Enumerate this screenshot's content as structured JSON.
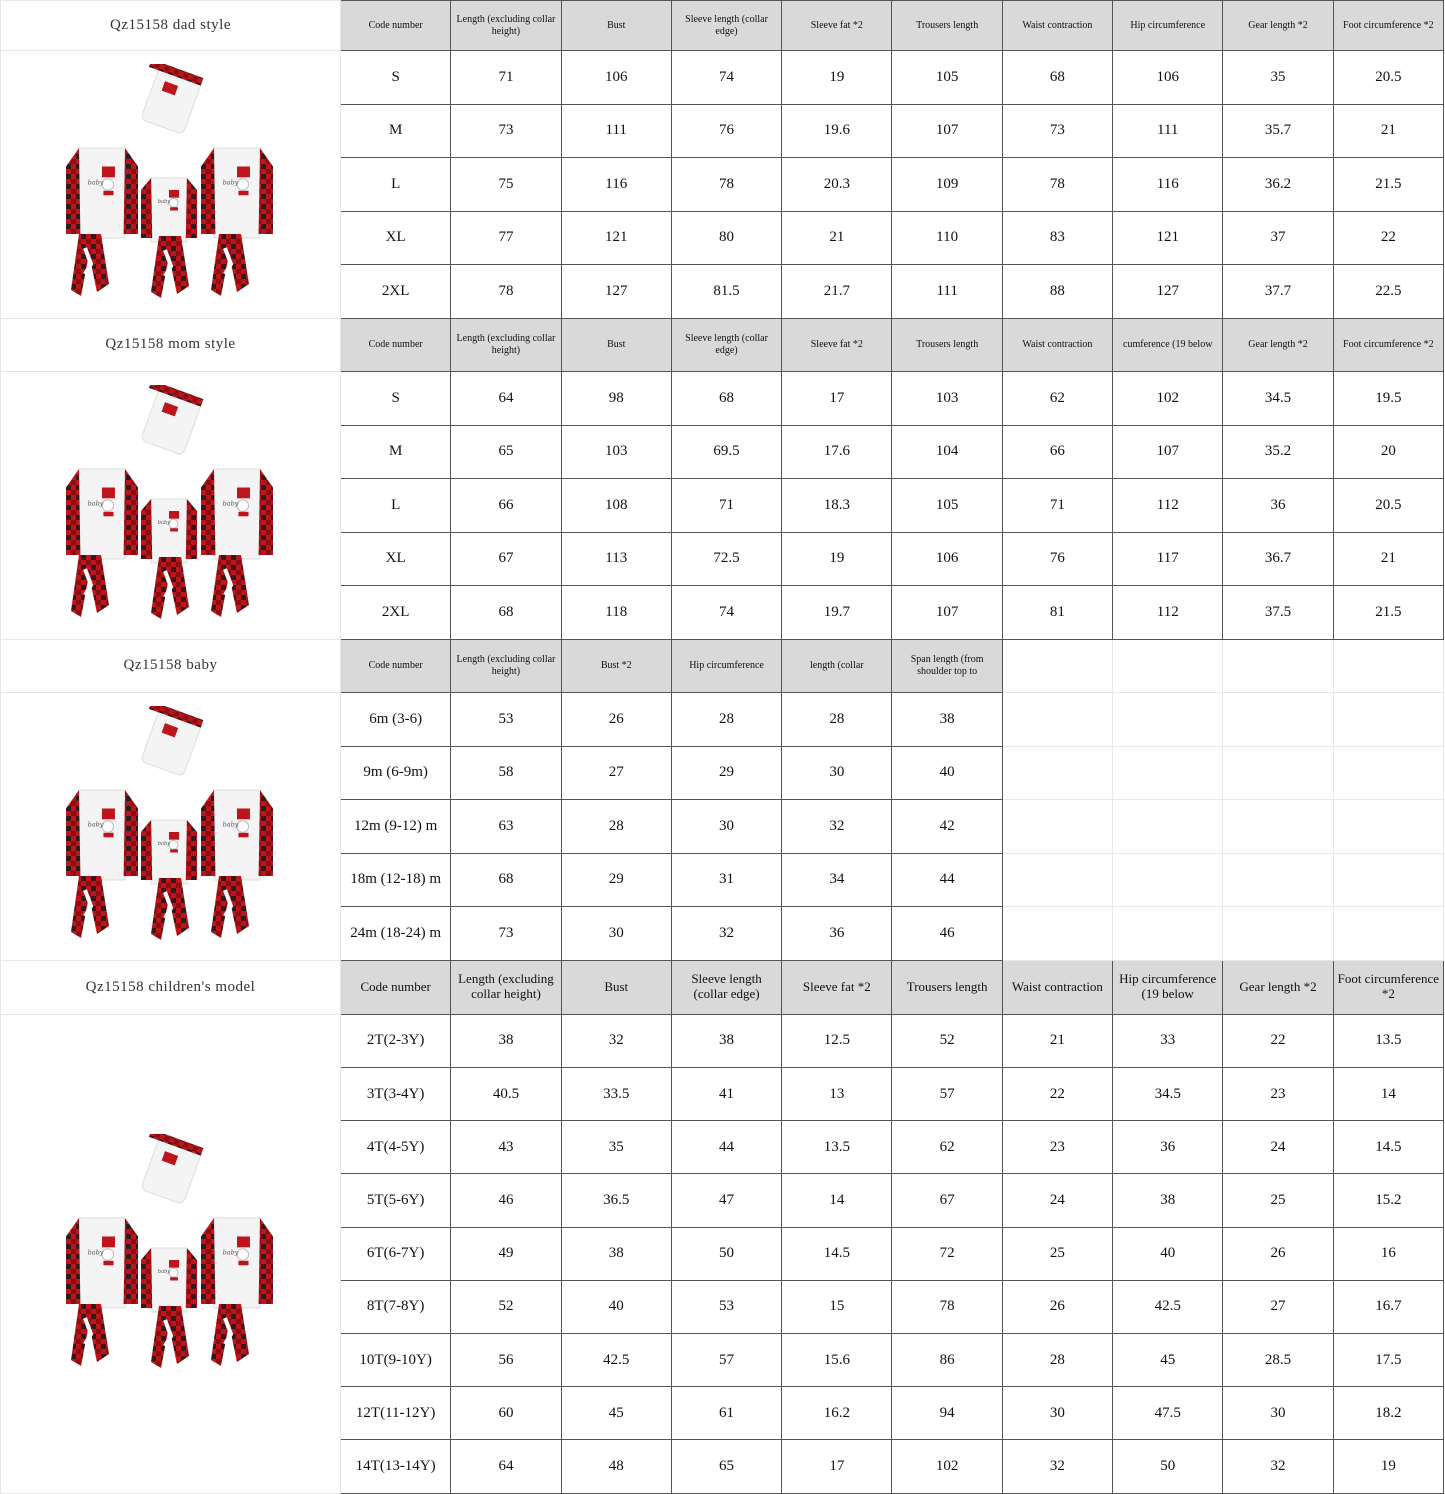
{
  "colors": {
    "header_bg": "#d9d9d9",
    "plaid_red": "#c0141c",
    "plaid_black": "#1a1a1a",
    "border": "#555555"
  },
  "sections": [
    {
      "title": "Qz15158 dad style",
      "image": "family-pajama-product-image",
      "header_class": "",
      "headers": [
        "Code number",
        "Length (excluding collar height)",
        "Bust",
        "Sleeve length (collar edge)",
        "Sleeve fat *2",
        "Trousers length",
        "Waist contraction",
        "Hip circumference",
        "Gear length *2",
        "Foot circumference *2"
      ],
      "rows": [
        [
          "S",
          "71",
          "106",
          "74",
          "19",
          "105",
          "68",
          "106",
          "35",
          "20.5"
        ],
        [
          "M",
          "73",
          "111",
          "76",
          "19.6",
          "107",
          "73",
          "111",
          "35.7",
          "21"
        ],
        [
          "L",
          "75",
          "116",
          "78",
          "20.3",
          "109",
          "78",
          "116",
          "36.2",
          "21.5"
        ],
        [
          "XL",
          "77",
          "121",
          "80",
          "21",
          "110",
          "83",
          "121",
          "37",
          "22"
        ],
        [
          "2XL",
          "78",
          "127",
          "81.5",
          "21.7",
          "111",
          "88",
          "127",
          "37.7",
          "22.5"
        ]
      ]
    },
    {
      "title": "Qz15158 mom style",
      "image": "family-pajama-product-image",
      "header_class": "",
      "headers": [
        "Code number",
        "Length (excluding collar height)",
        "Bust",
        "Sleeve length (collar edge)",
        "Sleeve fat *2",
        "Trousers length",
        "Waist contraction",
        "cumference (19 below",
        "Gear length *2",
        "Foot circumference *2"
      ],
      "rows": [
        [
          "S",
          "64",
          "98",
          "68",
          "17",
          "103",
          "62",
          "102",
          "34.5",
          "19.5"
        ],
        [
          "M",
          "65",
          "103",
          "69.5",
          "17.6",
          "104",
          "66",
          "107",
          "35.2",
          "20"
        ],
        [
          "L",
          "66",
          "108",
          "71",
          "18.3",
          "105",
          "71",
          "112",
          "36",
          "20.5"
        ],
        [
          "XL",
          "67",
          "113",
          "72.5",
          "19",
          "106",
          "76",
          "117",
          "36.7",
          "21"
        ],
        [
          "2XL",
          "68",
          "118",
          "74",
          "19.7",
          "107",
          "81",
          "112",
          "37.5",
          "21.5"
        ]
      ]
    },
    {
      "title": "Qz15158 baby",
      "image": "family-pajama-product-image",
      "header_class": "",
      "headers": [
        "Code number",
        "Length (excluding collar height)",
        "Bust *2",
        "Hip circumference",
        "length (collar",
        "Span length (from shoulder top to"
      ],
      "rows": [
        [
          "6m (3-6)",
          "53",
          "26",
          "28",
          "28",
          "38"
        ],
        [
          "9m (6-9m)",
          "58",
          "27",
          "29",
          "30",
          "40"
        ],
        [
          "12m (9-12) m",
          "63",
          "28",
          "30",
          "32",
          "42"
        ],
        [
          "18m (12-18) m",
          "68",
          "29",
          "31",
          "34",
          "44"
        ],
        [
          "24m (18-24) m",
          "73",
          "30",
          "32",
          "36",
          "46"
        ]
      ]
    },
    {
      "title": "Qz15158 children's model",
      "image": "family-pajama-product-image",
      "header_class": "big",
      "headers": [
        "Code number",
        "Length (excluding collar height)",
        "Bust",
        "Sleeve length (collar edge)",
        "Sleeve fat *2",
        "Trousers length",
        "Waist contraction",
        "Hip circumference (19 below",
        "Gear length *2",
        "Foot circumference *2"
      ],
      "rows": [
        [
          "2T(2-3Y)",
          "38",
          "32",
          "38",
          "12.5",
          "52",
          "21",
          "33",
          "22",
          "13.5"
        ],
        [
          "3T(3-4Y)",
          "40.5",
          "33.5",
          "41",
          "13",
          "57",
          "22",
          "34.5",
          "23",
          "14"
        ],
        [
          "4T(4-5Y)",
          "43",
          "35",
          "44",
          "13.5",
          "62",
          "23",
          "36",
          "24",
          "14.5"
        ],
        [
          "5T(5-6Y)",
          "46",
          "36.5",
          "47",
          "14",
          "67",
          "24",
          "38",
          "25",
          "15.2"
        ],
        [
          "6T(6-7Y)",
          "49",
          "38",
          "50",
          "14.5",
          "72",
          "25",
          "40",
          "26",
          "16"
        ],
        [
          "8T(7-8Y)",
          "52",
          "40",
          "53",
          "15",
          "78",
          "26",
          "42.5",
          "27",
          "16.7"
        ],
        [
          "10T(9-10Y)",
          "56",
          "42.5",
          "57",
          "15.6",
          "86",
          "28",
          "45",
          "28.5",
          "17.5"
        ],
        [
          "12T(11-12Y)",
          "60",
          "45",
          "61",
          "16.2",
          "94",
          "30",
          "47.5",
          "30",
          "18.2"
        ],
        [
          "14T(13-14Y)",
          "64",
          "48",
          "65",
          "17",
          "102",
          "32",
          "50",
          "32",
          "19"
        ]
      ]
    }
  ]
}
